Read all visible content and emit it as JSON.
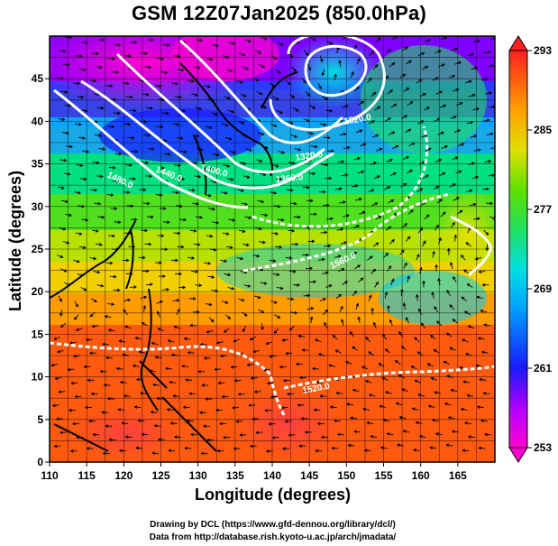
{
  "title": "GSM 12Z07Jan2025 (850.0hPa)",
  "axes": {
    "xlabel": "Longitude (degrees)",
    "ylabel": "Latitude  (degrees)",
    "x_ticks": [
      "110",
      "115",
      "120",
      "125",
      "130",
      "135",
      "140",
      "145",
      "150",
      "155",
      "160",
      "165"
    ],
    "y_ticks": [
      "0",
      "5",
      "10",
      "15",
      "20",
      "25",
      "30",
      "35",
      "40",
      "45"
    ]
  },
  "colorbar": {
    "ticks": [
      "293",
      "285",
      "277",
      "269",
      "261",
      "253"
    ]
  },
  "contour_labels": [
    "1480.0",
    "1440.0",
    "1400.0",
    "1360.0",
    "1320.0",
    "1520.0",
    "1560.0",
    "1520.0"
  ],
  "footer": {
    "line1": "Drawing by DCL (https://www.gfd-dennou.org/library/dcl/)",
    "line2": "Data from http://database.rish.kyoto-u.ac.jp/arch/jmadata/"
  },
  "chart_data": {
    "type": "heatmap",
    "variable": "temperature with geopotential height contours and streamlines",
    "title": "GSM 12Z07Jan2025 (850.0hPa)",
    "xlabel": "Longitude (degrees)",
    "ylabel": "Latitude  (degrees)",
    "xlim": [
      110,
      170
    ],
    "ylim": [
      0,
      50
    ],
    "colorbar_range": [
      253,
      293
    ],
    "colorbar_ticks": [
      253,
      261,
      269,
      277,
      285,
      293
    ]
  }
}
